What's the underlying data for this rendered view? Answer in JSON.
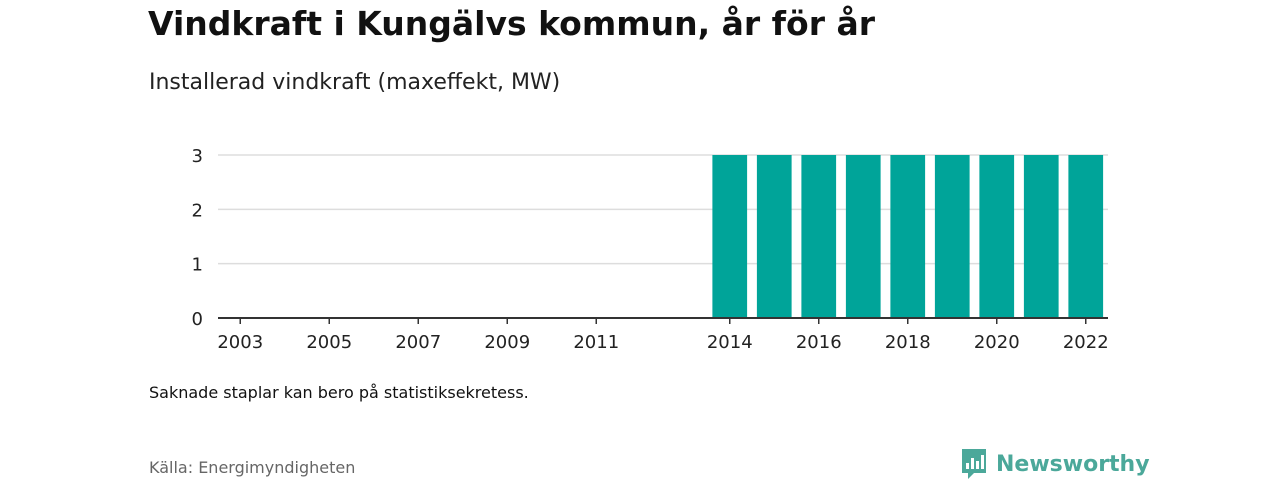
{
  "title": "Vindkraft i Kungälvs kommun, år för år",
  "subtitle": "Installerad vindkraft (maxeffekt, MW)",
  "note": "Saknade staplar kan bero på statistiksekretess.",
  "source": "Källa: Energimyndigheten",
  "brand": {
    "name": "Newsworthy",
    "icon": "newsworthy-logo-icon",
    "color": "#4ba89a"
  },
  "colors": {
    "bar": "#00a499",
    "grid": "#dddddd",
    "axis": "#333333",
    "text": "#222222"
  },
  "chart_data": {
    "type": "bar",
    "categories": [
      "2003",
      "2004",
      "2005",
      "2006",
      "2007",
      "2008",
      "2009",
      "2010",
      "2011",
      "2012",
      "2013",
      "2014",
      "2015",
      "2016",
      "2017",
      "2018",
      "2019",
      "2020",
      "2021",
      "2022"
    ],
    "x_tick_labels": [
      "2003",
      "2005",
      "2007",
      "2009",
      "2011",
      "2014",
      "2016",
      "2018",
      "2020",
      "2022"
    ],
    "values": [
      null,
      null,
      null,
      null,
      null,
      null,
      null,
      null,
      null,
      null,
      null,
      3,
      3,
      3,
      3,
      3,
      3,
      3,
      3,
      3
    ],
    "ylim": [
      0,
      3
    ],
    "y_ticks": [
      0,
      1,
      2,
      3
    ],
    "grid": true,
    "xlabel": "",
    "ylabel": ""
  }
}
